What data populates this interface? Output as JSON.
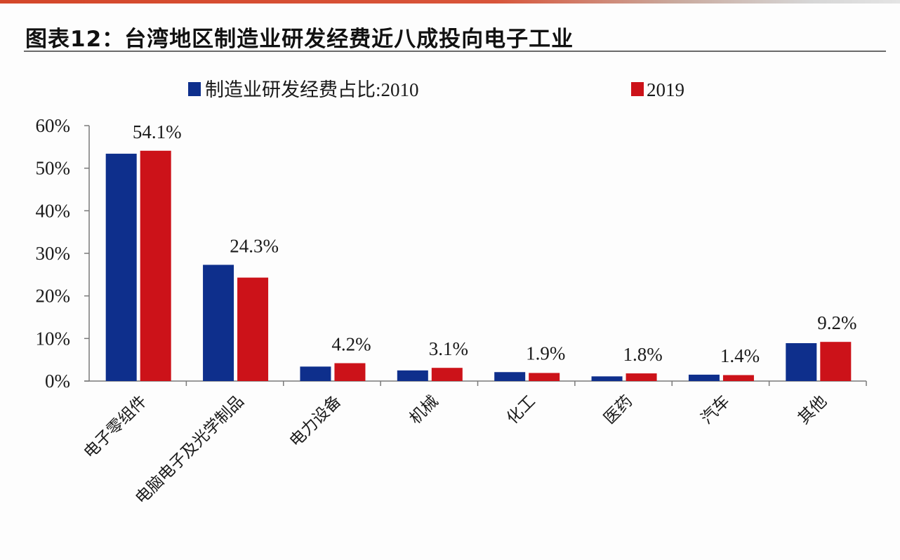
{
  "header": {
    "title": "图表12：台湾地区制造业研发经费近八成投向电子工业"
  },
  "colors": {
    "accent_bar": "#d4472a",
    "series_2010": "#0e2f8c",
    "series_2019": "#cc1219"
  },
  "chart_data": {
    "type": "bar",
    "title": "图表12：台湾地区制造业研发经费近八成投向电子工业",
    "xlabel": "",
    "ylabel": "",
    "ylim": [
      0,
      60
    ],
    "yticks": [
      0,
      10,
      20,
      30,
      40,
      50,
      60
    ],
    "ytick_labels": [
      "0%",
      "10%",
      "20%",
      "30%",
      "40%",
      "50%",
      "60%"
    ],
    "grid": false,
    "legend_position": "top",
    "categories": [
      "电子零组件",
      "电脑电子及光学制品",
      "电力设备",
      "机械",
      "化工",
      "医药",
      "汽车",
      "其他"
    ],
    "series": [
      {
        "name": "制造业研发经费占比:2010",
        "color": "#0e2f8c",
        "values": [
          53.4,
          27.3,
          3.4,
          2.5,
          2.1,
          1.1,
          1.5,
          8.9
        ]
      },
      {
        "name": "2019",
        "color": "#cc1219",
        "values": [
          54.1,
          24.3,
          4.2,
          3.1,
          1.9,
          1.8,
          1.4,
          9.2
        ],
        "data_labels": [
          "54.1%",
          "24.3%",
          "4.2%",
          "3.1%",
          "1.9%",
          "1.8%",
          "1.4%",
          "9.2%"
        ]
      }
    ]
  }
}
